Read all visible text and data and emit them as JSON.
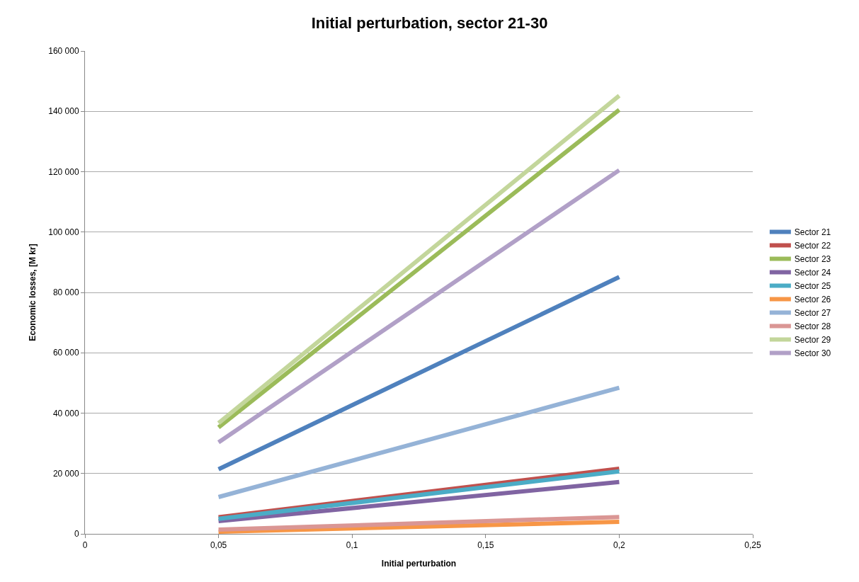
{
  "chart_data": {
    "type": "line",
    "title": "Initial perturbation, sector 21-30",
    "xlabel": "Initial perturbation",
    "ylabel": "Economic losses, [M kr]",
    "x": [
      0.05,
      0.2
    ],
    "xlim": [
      0,
      0.25
    ],
    "xticks": [
      {
        "value": 0,
        "label": "0"
      },
      {
        "value": 0.05,
        "label": "0,05"
      },
      {
        "value": 0.1,
        "label": "0,1"
      },
      {
        "value": 0.15,
        "label": "0,15"
      },
      {
        "value": 0.2,
        "label": "0,2"
      },
      {
        "value": 0.25,
        "label": "0,25"
      }
    ],
    "ylim": [
      0,
      160000
    ],
    "yticks": [
      {
        "value": 0,
        "label": "0"
      },
      {
        "value": 20000,
        "label": "20 000"
      },
      {
        "value": 40000,
        "label": "40 000"
      },
      {
        "value": 60000,
        "label": "60 000"
      },
      {
        "value": 80000,
        "label": "80 000"
      },
      {
        "value": 100000,
        "label": "100 000"
      },
      {
        "value": 120000,
        "label": "120 000"
      },
      {
        "value": 140000,
        "label": "140 000"
      },
      {
        "value": 160000,
        "label": "160 000"
      }
    ],
    "grid": "y",
    "legend": "right",
    "marker": "none",
    "line_style": "solid",
    "series": [
      {
        "name": "Sector 21",
        "color": "#4f81bd",
        "values": [
          21400,
          85100
        ]
      },
      {
        "name": "Sector 22",
        "color": "#c0504d",
        "values": [
          5500,
          21600
        ]
      },
      {
        "name": "Sector 23",
        "color": "#9bbb59",
        "values": [
          35300,
          140500
        ]
      },
      {
        "name": "Sector 24",
        "color": "#8064a2",
        "values": [
          4200,
          17200
        ]
      },
      {
        "name": "Sector 25",
        "color": "#4bacc6",
        "values": [
          5000,
          20700
        ]
      },
      {
        "name": "Sector 26",
        "color": "#f79646",
        "values": [
          700,
          4000
        ]
      },
      {
        "name": "Sector 27",
        "color": "#95b3d7",
        "values": [
          12200,
          48400
        ]
      },
      {
        "name": "Sector 28",
        "color": "#da9694",
        "values": [
          1400,
          5600
        ]
      },
      {
        "name": "Sector 29",
        "color": "#c3d69b",
        "values": [
          36700,
          145200
        ]
      },
      {
        "name": "Sector 30",
        "color": "#b1a0c7",
        "values": [
          30300,
          120500
        ]
      }
    ]
  }
}
